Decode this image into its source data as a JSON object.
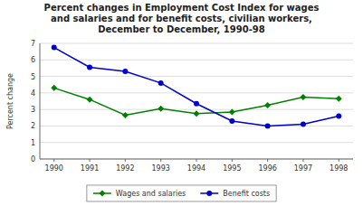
{
  "chart_data": {
    "type": "line",
    "title": "Percent changes in Employment Cost Index for wages\nand salaries and for benefit costs, civilian workers,\nDecember to December, 1990-98",
    "y_label": "Percent change",
    "x": [
      1990,
      1991,
      1992,
      1993,
      1994,
      1995,
      1996,
      1997,
      1998
    ],
    "series": [
      {
        "name": "Wages and salaries",
        "color": "#008000",
        "marker": "diamond",
        "values": [
          4.3,
          3.6,
          2.65,
          3.05,
          2.75,
          2.85,
          3.25,
          3.75,
          3.65
        ]
      },
      {
        "name": "Benefit costs",
        "color": "#0000cc",
        "marker": "circle",
        "values": [
          6.75,
          5.55,
          5.3,
          4.6,
          3.35,
          2.3,
          2.0,
          2.1,
          2.6
        ]
      }
    ],
    "xlim": [
      1989.6,
      1998.4
    ],
    "xticks": [
      1990,
      1991,
      1992,
      1993,
      1994,
      1995,
      1996,
      1997,
      1998
    ],
    "ylim": [
      0,
      7
    ],
    "yticks": [
      0,
      1,
      2,
      3,
      4,
      5,
      6,
      7
    ],
    "grid": true,
    "legend": "bottom"
  }
}
